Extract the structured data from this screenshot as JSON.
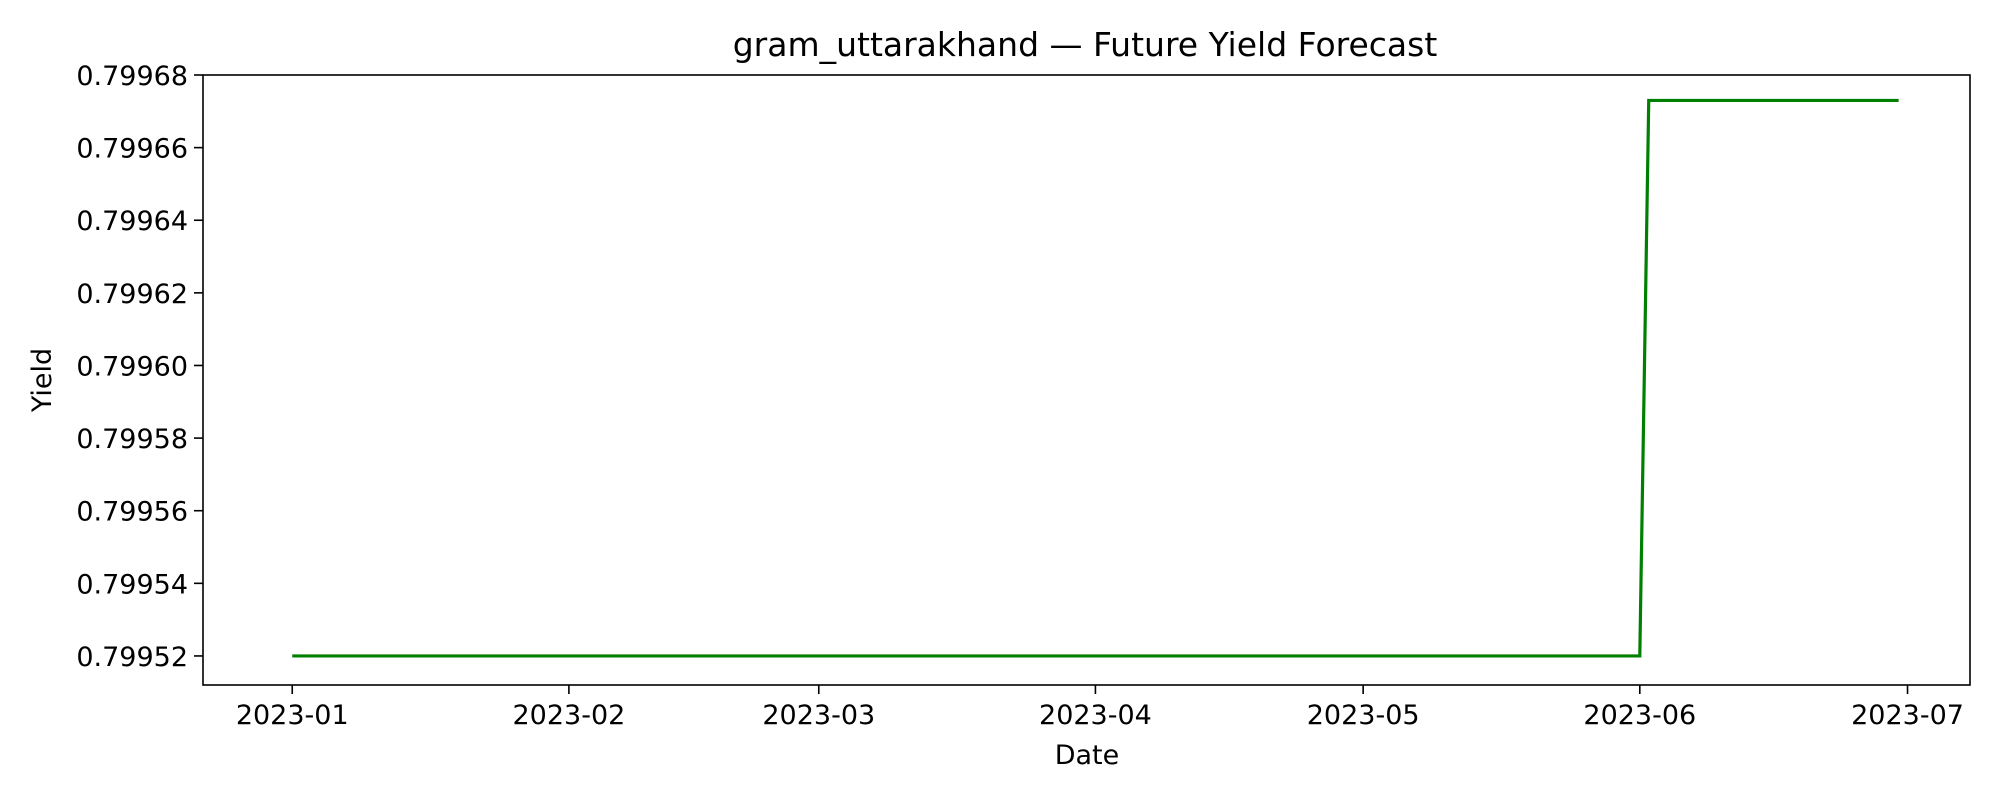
{
  "chart_data": {
    "type": "line",
    "title": "gram_uttarakhand — Future Yield Forecast",
    "xlabel": "Date",
    "ylabel": "Yield",
    "x_tick_labels": [
      "2023-01",
      "2023-02",
      "2023-03",
      "2023-04",
      "2023-05",
      "2023-06",
      "2023-07"
    ],
    "x_tick_dates": [
      "2023-01-01",
      "2023-02-01",
      "2023-03-01",
      "2023-04-01",
      "2023-05-01",
      "2023-06-01",
      "2023-07-01"
    ],
    "y_tick_labels": [
      "0.79952",
      "0.79954",
      "0.79956",
      "0.79958",
      "0.79960",
      "0.79962",
      "0.79964",
      "0.79966",
      "0.79968"
    ],
    "y_tick_values": [
      0.79952,
      0.79954,
      0.79956,
      0.79958,
      0.7996,
      0.79962,
      0.79964,
      0.79966,
      0.79968
    ],
    "xlim": [
      "2022-12-22",
      "2023-07-08"
    ],
    "ylim": [
      0.799512,
      0.79968
    ],
    "grid": false,
    "series": [
      {
        "color": "#008000",
        "points": [
          {
            "x": "2023-01-01",
            "y": 0.79952
          },
          {
            "x": "2023-06-01",
            "y": 0.79952
          },
          {
            "x": "2023-06-02",
            "y": 0.799673
          },
          {
            "x": "2023-06-30",
            "y": 0.799673
          }
        ]
      }
    ]
  }
}
